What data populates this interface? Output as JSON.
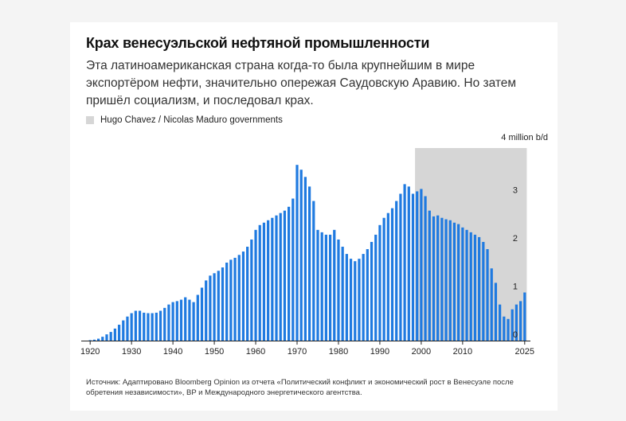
{
  "header": {
    "title": "Крах венесуэльской нефтяной промышленности",
    "subtitle": "Эта латиноамериканская страна когда-то была крупнейшим в мире экспортёром нефти, значительно опережая Саудовскую Аравию. Но затем пришёл социализм, и последовал крах."
  },
  "legend": {
    "label": "Hugo Chavez / Nicolas Maduro governments",
    "color": "#d6d6d6"
  },
  "footer": {
    "source": "Источник: Адаптировано Bloomberg Opinion из отчета «Политический конфликт и экономический рост в Венесуэле после обретения независимости», BP и Международного энергетического агентства."
  },
  "chart_data": {
    "type": "bar",
    "bar_color": "#1f7ae0",
    "shade_color": "#d6d6d6",
    "unit_label": "4 million b/d",
    "xlim": [
      1919,
      2026
    ],
    "ylim": [
      0,
      4
    ],
    "yticks": [
      0,
      1,
      2,
      3
    ],
    "xticks": [
      1920,
      1930,
      1940,
      1950,
      1960,
      1970,
      1980,
      1990,
      2000,
      2010,
      2025
    ],
    "shaded_range": [
      1999,
      2025
    ],
    "x": [
      1920,
      1921,
      1922,
      1923,
      1924,
      1925,
      1926,
      1927,
      1928,
      1929,
      1930,
      1931,
      1932,
      1933,
      1934,
      1935,
      1936,
      1937,
      1938,
      1939,
      1940,
      1941,
      1942,
      1943,
      1944,
      1945,
      1946,
      1947,
      1948,
      1949,
      1950,
      1951,
      1952,
      1953,
      1954,
      1955,
      1956,
      1957,
      1958,
      1959,
      1960,
      1961,
      1962,
      1963,
      1964,
      1965,
      1966,
      1967,
      1968,
      1969,
      1970,
      1971,
      1972,
      1973,
      1974,
      1975,
      1976,
      1977,
      1978,
      1979,
      1980,
      1981,
      1982,
      1983,
      1984,
      1985,
      1986,
      1987,
      1988,
      1989,
      1990,
      1991,
      1992,
      1993,
      1994,
      1995,
      1996,
      1997,
      1998,
      1999,
      2000,
      2001,
      2002,
      2003,
      2004,
      2005,
      2006,
      2007,
      2008,
      2009,
      2010,
      2011,
      2012,
      2013,
      2014,
      2015,
      2016,
      2017,
      2018,
      2019,
      2020,
      2021,
      2022,
      2023,
      2024,
      2025
    ],
    "values": [
      0.01,
      0.02,
      0.04,
      0.08,
      0.13,
      0.18,
      0.25,
      0.33,
      0.42,
      0.5,
      0.57,
      0.62,
      0.62,
      0.58,
      0.57,
      0.57,
      0.58,
      0.62,
      0.68,
      0.75,
      0.8,
      0.82,
      0.85,
      0.9,
      0.85,
      0.8,
      0.95,
      1.1,
      1.25,
      1.35,
      1.4,
      1.45,
      1.52,
      1.62,
      1.68,
      1.72,
      1.78,
      1.85,
      1.95,
      2.1,
      2.3,
      2.4,
      2.45,
      2.5,
      2.55,
      2.6,
      2.65,
      2.7,
      2.78,
      2.95,
      3.65,
      3.55,
      3.4,
      3.2,
      2.9,
      2.3,
      2.25,
      2.2,
      2.2,
      2.3,
      2.1,
      1.95,
      1.8,
      1.7,
      1.65,
      1.7,
      1.8,
      1.9,
      2.05,
      2.2,
      2.4,
      2.55,
      2.65,
      2.75,
      2.9,
      3.05,
      3.25,
      3.2,
      3.05,
      3.1,
      3.15,
      3.0,
      2.7,
      2.58,
      2.6,
      2.55,
      2.52,
      2.5,
      2.45,
      2.42,
      2.35,
      2.3,
      2.25,
      2.2,
      2.15,
      2.05,
      1.9,
      1.5,
      1.2,
      0.75,
      0.5,
      0.45,
      0.65,
      0.75,
      0.82,
      1.0
    ]
  }
}
